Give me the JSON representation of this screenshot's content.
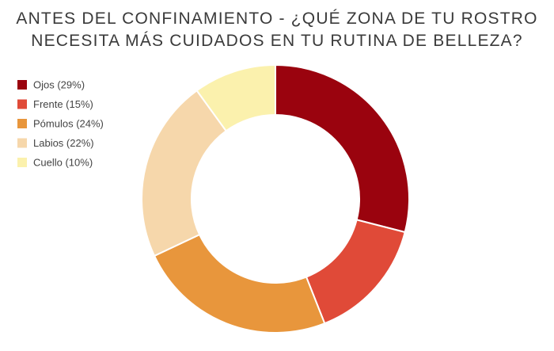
{
  "chart_data": {
    "type": "donut",
    "title": "ANTES DEL CONFINAMIENTO - ¿QUÉ ZONA DE TU ROSTRO NECESITA MÁS CUIDADOS EN TU RUTINA DE BELLEZA?",
    "categories": [
      "Ojos (29%)",
      "Frente (15%)",
      "Pómulos (24%)",
      "Labios (22%)",
      "Cuello (10%)"
    ],
    "values": [
      29,
      15,
      24,
      22,
      10
    ],
    "colors": [
      "#9a030e",
      "#e04a38",
      "#e8963c",
      "#f6d7ab",
      "#fbf1ad"
    ],
    "legend": "top-left"
  }
}
